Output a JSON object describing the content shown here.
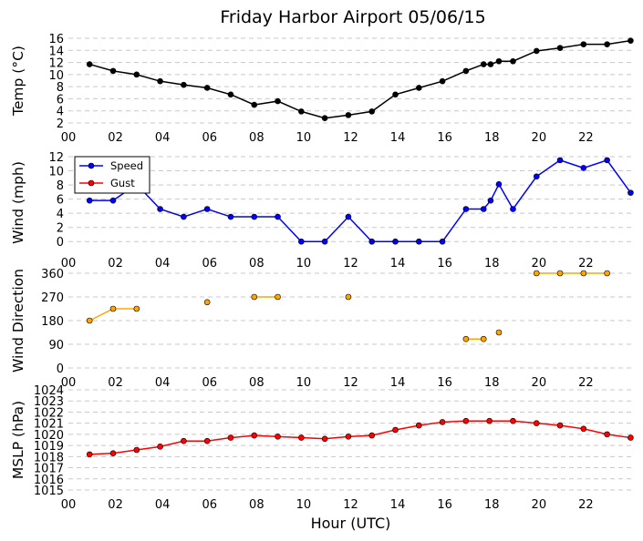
{
  "chart_data": [
    {
      "type": "line",
      "title": "Friday Harbor Airport 05/06/15",
      "ylabel": "Temp ($^\\circ$C)",
      "ylim": [
        2,
        16
      ],
      "yticks": [
        2,
        4,
        6,
        8,
        10,
        12,
        14,
        16
      ],
      "xlim": [
        0,
        24
      ],
      "xticks": [
        "00",
        "02",
        "04",
        "06",
        "08",
        "10",
        "12",
        "14",
        "16",
        "18",
        "20",
        "22"
      ],
      "grid": "horizontal-dashed",
      "color": "#000000",
      "series": [
        {
          "x": [
            0.9,
            1.9,
            2.9,
            3.9,
            4.9,
            5.9,
            6.9,
            7.9,
            8.9,
            9.9,
            10.9,
            11.9,
            12.9,
            13.9,
            14.9,
            15.9,
            16.9,
            17.65,
            17.95,
            18.3,
            18.9,
            19.9,
            20.9,
            21.9,
            22.9,
            23.9
          ],
          "y": [
            11.7,
            10.6,
            10.0,
            8.9,
            8.3,
            7.8,
            6.7,
            5.0,
            5.6,
            3.9,
            2.8,
            3.3,
            3.9,
            6.7,
            7.8,
            8.9,
            10.6,
            11.7,
            11.7,
            12.2,
            12.2,
            13.9,
            14.4,
            15.0,
            15.0,
            15.6
          ]
        }
      ]
    },
    {
      "type": "line",
      "ylabel": "Wind (mph)",
      "ylim": [
        -1,
        12
      ],
      "yticks": [
        0,
        2,
        4,
        6,
        8,
        10,
        12
      ],
      "xlim": [
        0,
        24
      ],
      "xticks": [
        "00",
        "02",
        "04",
        "06",
        "08",
        "10",
        "12",
        "14",
        "16",
        "18",
        "20",
        "22"
      ],
      "grid": "horizontal-dashed",
      "legend": "upper-left",
      "series": [
        {
          "name": "Speed",
          "color": "#0000ff",
          "x": [
            0.9,
            1.9,
            2.9,
            3.9,
            4.9,
            5.9,
            6.9,
            7.9,
            8.9,
            9.9,
            10.9,
            11.9,
            12.9,
            13.9,
            14.9,
            15.9,
            16.9,
            17.65,
            17.95,
            18.3,
            18.9,
            19.9,
            20.9,
            21.9,
            22.9,
            23.9
          ],
          "y": [
            5.8,
            5.8,
            8.1,
            4.6,
            3.5,
            4.6,
            3.5,
            3.5,
            3.5,
            0,
            0,
            3.5,
            0,
            0,
            0,
            0,
            4.6,
            4.6,
            5.8,
            8.1,
            4.6,
            9.2,
            11.5,
            10.4,
            11.5,
            6.9
          ]
        },
        {
          "name": "Gust",
          "color": "#ff0000",
          "x": [],
          "y": []
        }
      ]
    },
    {
      "type": "scatter",
      "ylabel": "Wind Direction",
      "ylim": [
        0,
        360
      ],
      "yticks": [
        0,
        90,
        180,
        270,
        360
      ],
      "xlim": [
        0,
        24
      ],
      "xticks": [
        "00",
        "02",
        "04",
        "06",
        "08",
        "10",
        "12",
        "14",
        "16",
        "18",
        "20",
        "22"
      ],
      "grid": "horizontal-dashed",
      "color": "#ffa500",
      "segments": [
        {
          "x": [
            0.9,
            1.9,
            2.9
          ],
          "y": [
            180,
            225,
            225
          ]
        },
        {
          "x": [
            5.9
          ],
          "y": [
            250
          ]
        },
        {
          "x": [
            7.9,
            8.9
          ],
          "y": [
            270,
            270
          ]
        },
        {
          "x": [
            11.9
          ],
          "y": [
            270
          ]
        },
        {
          "x": [
            16.9,
            17.65
          ],
          "y": [
            110,
            110
          ]
        },
        {
          "x": [
            18.3
          ],
          "y": [
            135
          ]
        },
        {
          "x": [
            19.9,
            20.9,
            21.9,
            22.9
          ],
          "y": [
            360,
            360,
            360,
            360
          ]
        }
      ]
    },
    {
      "type": "line",
      "ylabel": "MSLP (hPa)",
      "xlabel": "Hour (UTC)",
      "ylim": [
        1015,
        1024
      ],
      "yticks": [
        1015,
        1016,
        1017,
        1018,
        1019,
        1020,
        1021,
        1022,
        1023,
        1024
      ],
      "xlim": [
        0,
        24
      ],
      "xticks": [
        "00",
        "02",
        "04",
        "06",
        "08",
        "10",
        "12",
        "14",
        "16",
        "18",
        "20",
        "22"
      ],
      "grid": "horizontal-dashed",
      "color": "#ff0000",
      "series": [
        {
          "x": [
            0.9,
            1.9,
            2.9,
            3.9,
            4.9,
            5.9,
            6.9,
            7.9,
            8.9,
            9.9,
            10.9,
            11.9,
            12.9,
            13.9,
            14.9,
            15.9,
            16.9,
            17.9,
            18.9,
            19.9,
            20.9,
            21.9,
            22.9,
            23.9
          ],
          "y": [
            1018.2,
            1018.3,
            1018.6,
            1018.9,
            1019.4,
            1019.4,
            1019.7,
            1019.9,
            1019.8,
            1019.7,
            1019.6,
            1019.8,
            1019.9,
            1020.4,
            1020.8,
            1021.1,
            1021.2,
            1021.2,
            1021.2,
            1021.0,
            1020.8,
            1020.5,
            1020.0,
            1019.7
          ]
        }
      ]
    }
  ]
}
